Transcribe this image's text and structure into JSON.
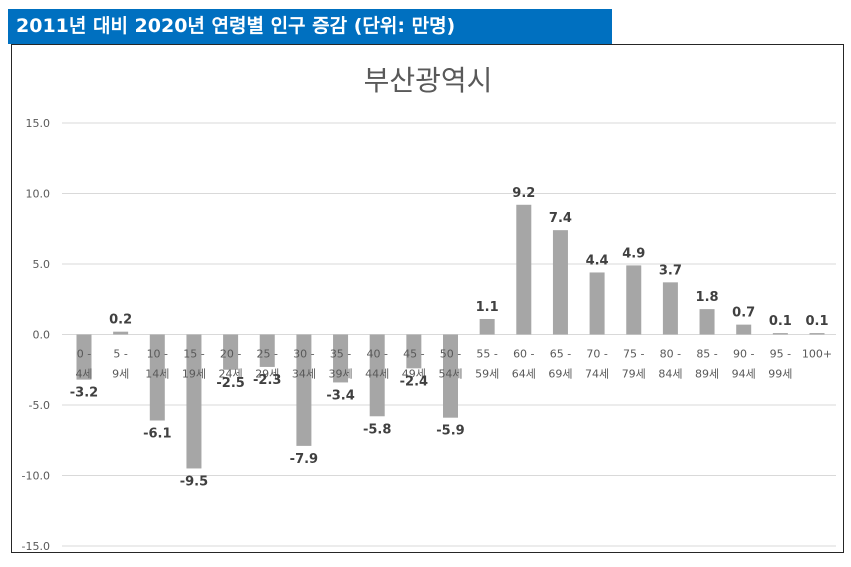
{
  "header": {
    "title": "2011년 대비 2020년 연령별 인구 증감 (단위: 만명)"
  },
  "colors": {
    "banner": "#0070c0",
    "bar": "#a6a6a6",
    "grid": "#d9d9d9",
    "text": "#595959"
  },
  "chart_data": {
    "type": "bar",
    "title": "부산광역시",
    "xlabel": "",
    "ylabel": "",
    "ylim": [
      -15,
      15
    ],
    "yticks": [
      15.0,
      10.0,
      5.0,
      0.0,
      -5.0,
      -10.0,
      -15.0
    ],
    "ytick_labels": [
      "15.0",
      "10.0",
      "5.0",
      "0.0",
      "-5.0",
      "-10.0",
      "-15.0"
    ],
    "grid": true,
    "categories": [
      [
        "0 -",
        "4세"
      ],
      [
        "5 -",
        "9세"
      ],
      [
        "10 -",
        "14세"
      ],
      [
        "15 -",
        "19세"
      ],
      [
        "20 -",
        "24세"
      ],
      [
        "25 -",
        "29세"
      ],
      [
        "30 -",
        "34세"
      ],
      [
        "35 -",
        "39세"
      ],
      [
        "40 -",
        "44세"
      ],
      [
        "45 -",
        "49세"
      ],
      [
        "50 -",
        "54세"
      ],
      [
        "55 -",
        "59세"
      ],
      [
        "60 -",
        "64세"
      ],
      [
        "65 -",
        "69세"
      ],
      [
        "70 -",
        "74세"
      ],
      [
        "75 -",
        "79세"
      ],
      [
        "80 -",
        "84세"
      ],
      [
        "85 -",
        "89세"
      ],
      [
        "90 -",
        "94세"
      ],
      [
        "95 -",
        "99세"
      ],
      [
        "100+"
      ]
    ],
    "values": [
      -3.2,
      0.2,
      -6.1,
      -9.5,
      -2.5,
      -2.3,
      -7.9,
      -3.4,
      -5.8,
      -2.4,
      -5.9,
      1.1,
      9.2,
      7.4,
      4.4,
      4.9,
      3.7,
      1.8,
      0.7,
      0.1,
      0.1
    ],
    "value_labels": [
      "-3.2",
      "0.2",
      "-6.1",
      "-9.5",
      "-2.5",
      "-2.3",
      "-7.9",
      "-3.4",
      "-5.8",
      "-2.4",
      "-5.9",
      "1.1",
      "9.2",
      "7.4",
      "4.4",
      "4.9",
      "3.7",
      "1.8",
      "0.7",
      "0.1",
      "0.1"
    ]
  }
}
